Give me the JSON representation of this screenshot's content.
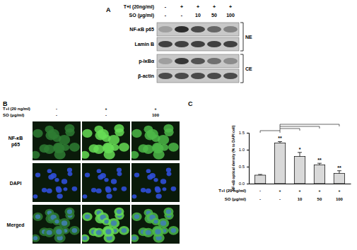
{
  "blot": {
    "label": "A",
    "conditions": [
      {
        "name": "T+I (20ng/ml)",
        "values": [
          "-",
          "+",
          "+",
          "+",
          "+"
        ]
      },
      {
        "name": "SO (μg/ml)",
        "values": [
          "-",
          "-",
          "10",
          "50",
          "100"
        ]
      }
    ],
    "groups": [
      {
        "name": "NE",
        "bands": [
          {
            "name": "NF-κB p65",
            "intensity": [
              0.3,
              0.9,
              0.75,
              0.6,
              0.45
            ]
          },
          {
            "name": "Lamin B",
            "intensity": [
              0.8,
              0.8,
              0.8,
              0.8,
              0.8
            ]
          }
        ]
      },
      {
        "name": "CE",
        "bands": [
          {
            "name": "p-IκBα",
            "intensity": [
              0.3,
              0.85,
              0.7,
              0.55,
              0.4
            ]
          },
          {
            "name": "β-actin",
            "intensity": [
              0.75,
              0.75,
              0.75,
              0.75,
              0.75
            ]
          }
        ]
      }
    ]
  },
  "microscopy": {
    "label": "B",
    "conditions": [
      {
        "name": "T+I (20 ng/ml)",
        "values": [
          "-",
          "+",
          "+"
        ]
      },
      {
        "name": "SO (μg/ml)",
        "values": [
          "-",
          "-",
          "100"
        ]
      }
    ],
    "rows": [
      "NF-κB p65",
      "DAPI",
      "Merged"
    ]
  },
  "chart_data": {
    "type": "bar",
    "label": "C",
    "y_label": "NF-κB optical density (% to DAPI cell)",
    "categories": [
      null,
      null,
      null,
      null,
      null
    ],
    "values": [
      0.25,
      1.2,
      0.8,
      0.55,
      0.3
    ],
    "errors": [
      0.02,
      0.04,
      0.12,
      0.05,
      0.08
    ],
    "significance": [
      null,
      "**",
      "*",
      "**",
      "**"
    ],
    "conditions": [
      {
        "name": "T+I (20 ng/ml)",
        "values": [
          "-",
          "+",
          "+",
          "+",
          "+"
        ]
      },
      {
        "name": "SO (μg/ml)",
        "values": [
          "-",
          "-",
          "10",
          "50",
          "100"
        ]
      }
    ],
    "color": "#d9d9d9",
    "ylim": [
      0,
      1.5
    ],
    "yticks": [
      {
        "value": 0,
        "label": "0.0"
      },
      {
        "value": 0.5,
        "label": "0.5"
      },
      {
        "value": 1,
        "label": "1.0"
      },
      {
        "value": 1.5,
        "label": "1.5"
      }
    ],
    "grid": false
  }
}
